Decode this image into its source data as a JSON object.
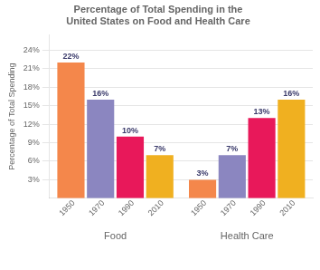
{
  "chart_data": {
    "type": "bar",
    "title": "Percentage of Total Spending in the\nUnited States on Food and Health Care",
    "ylabel": "Percentage of Total Spending",
    "categories": [
      "Food",
      "Health Care"
    ],
    "series": [
      {
        "name": "1950",
        "color": "#F4874B",
        "values": [
          22,
          3
        ],
        "value_labels": [
          "22%",
          "3%"
        ]
      },
      {
        "name": "1970",
        "color": "#8B86C0",
        "values": [
          16,
          7
        ],
        "value_labels": [
          "16%",
          "7%"
        ]
      },
      {
        "name": "1990",
        "color": "#E8185A",
        "values": [
          10,
          13
        ],
        "value_labels": [
          "10%",
          "13%"
        ]
      },
      {
        "name": "2010",
        "color": "#F0B020",
        "values": [
          7,
          16
        ],
        "value_labels": [
          "7%",
          "16%"
        ]
      }
    ],
    "ylim": [
      0,
      26.5
    ],
    "yticks": [
      {
        "value": 3,
        "label": "3%"
      },
      {
        "value": 6,
        "label": "6%"
      },
      {
        "value": 9,
        "label": "9%"
      },
      {
        "value": 12,
        "label": "12%"
      },
      {
        "value": 15,
        "label": "15%"
      },
      {
        "value": 18,
        "label": "18%"
      },
      {
        "value": 21,
        "label": "21%"
      },
      {
        "value": 24,
        "label": "24%"
      }
    ],
    "grid": true,
    "data_labels": true
  }
}
